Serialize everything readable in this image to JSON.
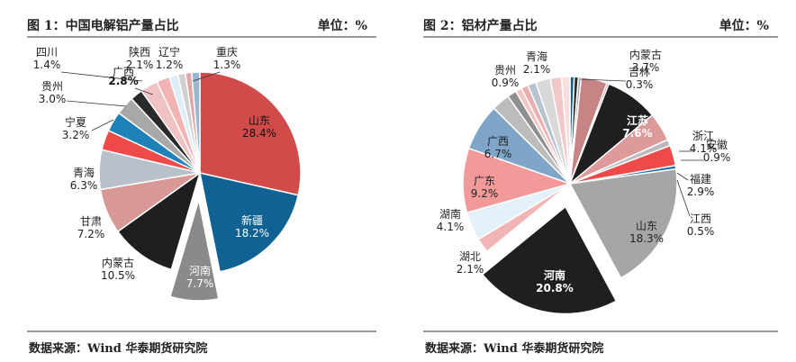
{
  "chart_data": [
    {
      "type": "pie",
      "title": "图 1：中国电解铝产量占比",
      "unit_label": "单位：%",
      "source": "数据来源：Wind 华泰期货研究院",
      "slices": [
        {
          "name": "山东",
          "value": 28.4,
          "label": "28.4%",
          "color": "#d14b4b"
        },
        {
          "name": "新疆",
          "value": 18.2,
          "label": "18.2%",
          "color": "#0f6291"
        },
        {
          "name": "河南",
          "value": 7.7,
          "label": "7.7%",
          "color": "#8a8a8a",
          "exploded": true
        },
        {
          "name": "内蒙古",
          "value": 10.5,
          "label": "10.5%",
          "color": "#1f1f1f"
        },
        {
          "name": "甘肃",
          "value": 7.2,
          "label": "7.2%",
          "color": "#d89898"
        },
        {
          "name": "青海",
          "value": 6.3,
          "label": "6.3%",
          "color": "#b8c1c9"
        },
        {
          "name": "宁夏",
          "value": 3.2,
          "label": "3.2%",
          "color": "#ee4a4a"
        },
        {
          "name": "",
          "value": 3.2,
          "label": "",
          "color": "#1e82b8"
        },
        {
          "name": "贵州",
          "value": 3.0,
          "label": "3.0%",
          "color": "#a8a8a8"
        },
        {
          "name": "",
          "value": 2.0,
          "label": "",
          "color": "#2a2a2a"
        },
        {
          "name": "广西",
          "value": 2.8,
          "label": "2.8%",
          "color": "#f1c2c2"
        },
        {
          "name": "陕西",
          "value": 2.1,
          "label": "2.1%",
          "color": "#f4b3b3"
        },
        {
          "name": "四川",
          "value": 1.4,
          "label": "1.4%",
          "color": "#ddeef8"
        },
        {
          "name": "辽宁",
          "value": 1.2,
          "label": "1.2%",
          "color": "#d0d0d0"
        },
        {
          "name": "",
          "value": 1.0,
          "label": "",
          "color": "#e0a5a5"
        },
        {
          "name": "重庆",
          "value": 1.3,
          "label": "1.3%",
          "color": "#9bb6cf"
        }
      ]
    },
    {
      "type": "pie",
      "title": "图 2：铝材产量占比",
      "unit_label": "单位：%",
      "source": "数据来源：Wind 华泰期货研究院",
      "slices": [
        {
          "name": "",
          "value": 0.6,
          "label": "",
          "color": "#0f6291"
        },
        {
          "name": "",
          "value": 0.6,
          "label": "",
          "color": "#2c2c2c"
        },
        {
          "name": "",
          "value": 0.4,
          "label": "",
          "color": "#9a9a9a"
        },
        {
          "name": "内蒙古",
          "value": 3.7,
          "label": "3.7%",
          "color": "#c88484"
        },
        {
          "name": "吉林",
          "value": 0.3,
          "label": "0.3%",
          "color": "#e07070"
        },
        {
          "name": "江苏",
          "value": 7.6,
          "label": "7.6%",
          "color": "#1f1f1f"
        },
        {
          "name": "浙江",
          "value": 4.1,
          "label": "4.1%",
          "color": "#de9a9a"
        },
        {
          "name": "安徽",
          "value": 0.9,
          "label": "0.9%",
          "color": "#bbbbbb"
        },
        {
          "name": "福建",
          "value": 2.9,
          "label": "2.9%",
          "color": "#ee4a4a"
        },
        {
          "name": "江西",
          "value": 0.5,
          "label": "0.5%",
          "color": "#1e6fa8"
        },
        {
          "name": "山东",
          "value": 18.3,
          "label": "18.3%",
          "color": "#a6a6a6"
        },
        {
          "name": "河南",
          "value": 20.8,
          "label": "20.8%",
          "color": "#1f1f1f",
          "exploded": true
        },
        {
          "name": "湖北",
          "value": 2.1,
          "label": "2.1%",
          "color": "#f2b5b5"
        },
        {
          "name": "湖南",
          "value": 4.1,
          "label": "4.1%",
          "color": "#e4f1fa"
        },
        {
          "name": "广东",
          "value": 9.2,
          "label": "9.2%",
          "color": "#f29a9a"
        },
        {
          "name": "广西",
          "value": 6.7,
          "label": "6.7%",
          "color": "#7fa6c9"
        },
        {
          "name": "",
          "value": 2.6,
          "label": "",
          "color": "#bcbcbc"
        },
        {
          "name": "",
          "value": 1.3,
          "label": "",
          "color": "#8e8e8e"
        },
        {
          "name": "贵州",
          "value": 0.9,
          "label": "0.9%",
          "color": "#f5c4c4"
        },
        {
          "name": "",
          "value": 1.0,
          "label": "",
          "color": "#e8b0b0"
        },
        {
          "name": "",
          "value": 1.2,
          "label": "",
          "color": "#b7c3cf"
        },
        {
          "name": "青海",
          "value": 2.1,
          "label": "2.1%",
          "color": "#d8d8d8"
        },
        {
          "name": "",
          "value": 1.6,
          "label": "",
          "color": "#f0c8c8"
        },
        {
          "name": "",
          "value": 1.2,
          "label": "",
          "color": "#f8dede"
        }
      ]
    }
  ]
}
